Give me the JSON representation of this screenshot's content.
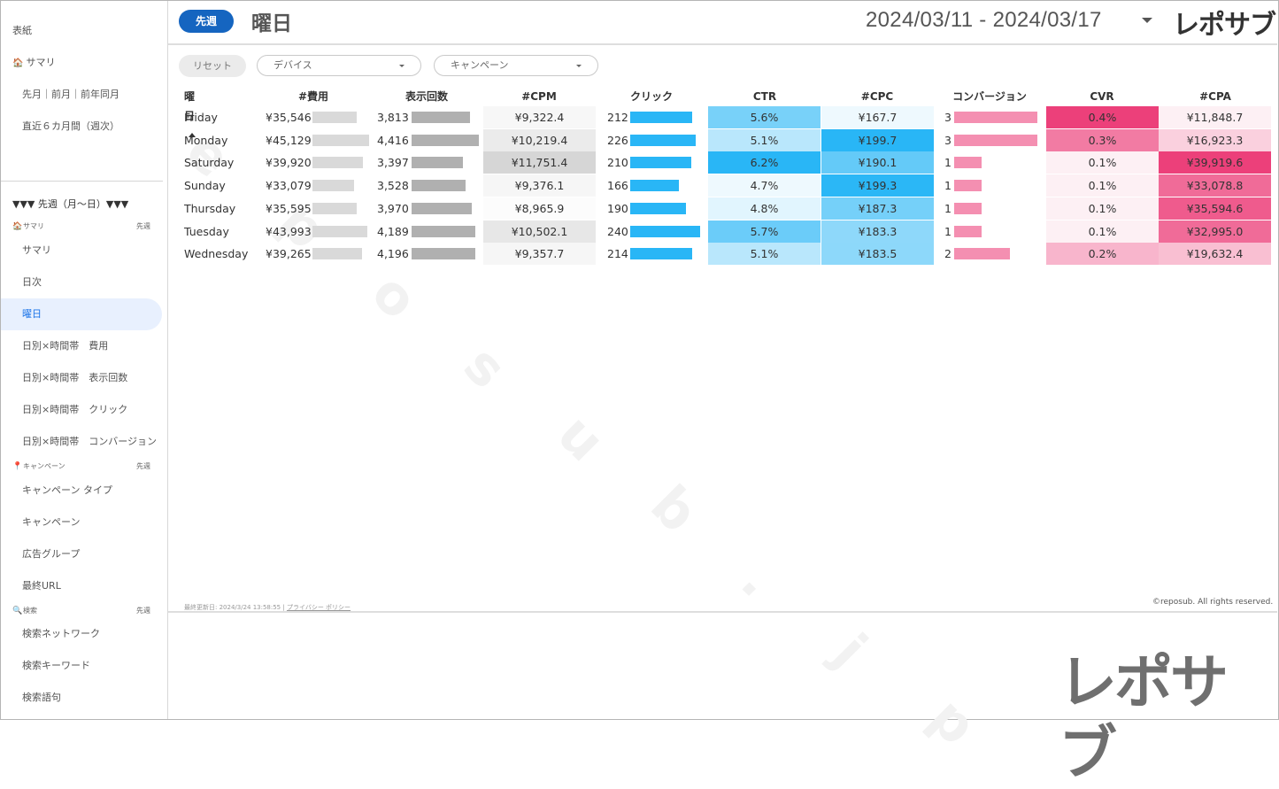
{
  "sidebar": {
    "top_items": [
      "表紙",
      "サマリ",
      "先月｜前月｜前年同月",
      "直近６カ月間（週次）"
    ],
    "summary_icon": "house-icon",
    "week_header": "▼▼▼ 先週（月～日）▼▼▼",
    "sections": [
      {
        "icon": "house-icon",
        "title": "サマリ",
        "right": "先週",
        "items": [
          "サマリ",
          "日次",
          "曜日",
          "日別×時間帯　費用",
          "日別×時間帯　表示回数",
          "日別×時間帯　クリック",
          "日別×時間帯　コンバージョン"
        ]
      },
      {
        "icon": "pin-icon",
        "title": "キャンペーン",
        "right": "先週",
        "items": [
          "キャンペーン タイプ",
          "キャンペーン",
          "広告グループ",
          "最終URL"
        ]
      },
      {
        "icon": "search-icon",
        "title": "検索",
        "right": "先週",
        "items": [
          "検索ネットワーク",
          "検索キーワード",
          "検索語句"
        ]
      }
    ],
    "active_item": "曜日"
  },
  "header": {
    "period_button": "先週",
    "title": "曜日",
    "date_range": "2024/03/11 - 2024/03/17",
    "logo": "レポサブ"
  },
  "filters": {
    "reset": "リセット",
    "device": "デバイス",
    "campaign": "キャンペーン"
  },
  "table": {
    "headers": [
      "曜日",
      "#費用",
      "表示回数",
      "#CPM",
      "クリック",
      "CTR",
      "#CPC",
      "コンバージョン",
      "CVR",
      "#CPA"
    ],
    "rows": [
      {
        "day": "Friday",
        "cost": "¥35,546",
        "cost_v": 35546,
        "imp": "3,813",
        "imp_v": 3813,
        "cpm": "¥9,322.4",
        "cpm_v": 9322.4,
        "clicks": "212",
        "clicks_v": 212,
        "ctr": "5.6%",
        "ctr_v": 5.6,
        "cpc": "¥167.7",
        "cpc_v": 167.7,
        "conv": "3",
        "conv_v": 3,
        "cvr": "0.4%",
        "cvr_v": 0.4,
        "cpa": "¥11,848.7",
        "cpa_v": 11848.7
      },
      {
        "day": "Monday",
        "cost": "¥45,129",
        "cost_v": 45129,
        "imp": "4,416",
        "imp_v": 4416,
        "cpm": "¥10,219.4",
        "cpm_v": 10219.4,
        "clicks": "226",
        "clicks_v": 226,
        "ctr": "5.1%",
        "ctr_v": 5.1,
        "cpc": "¥199.7",
        "cpc_v": 199.7,
        "conv": "3",
        "conv_v": 3,
        "cvr": "0.3%",
        "cvr_v": 0.3,
        "cpa": "¥16,923.3",
        "cpa_v": 16923.3
      },
      {
        "day": "Saturday",
        "cost": "¥39,920",
        "cost_v": 39920,
        "imp": "3,397",
        "imp_v": 3397,
        "cpm": "¥11,751.4",
        "cpm_v": 11751.4,
        "clicks": "210",
        "clicks_v": 210,
        "ctr": "6.2%",
        "ctr_v": 6.2,
        "cpc": "¥190.1",
        "cpc_v": 190.1,
        "conv": "1",
        "conv_v": 1,
        "cvr": "0.1%",
        "cvr_v": 0.1,
        "cpa": "¥39,919.6",
        "cpa_v": 39919.6
      },
      {
        "day": "Sunday",
        "cost": "¥33,079",
        "cost_v": 33079,
        "imp": "3,528",
        "imp_v": 3528,
        "cpm": "¥9,376.1",
        "cpm_v": 9376.1,
        "clicks": "166",
        "clicks_v": 166,
        "ctr": "4.7%",
        "ctr_v": 4.7,
        "cpc": "¥199.3",
        "cpc_v": 199.3,
        "conv": "1",
        "conv_v": 1,
        "cvr": "0.1%",
        "cvr_v": 0.1,
        "cpa": "¥33,078.8",
        "cpa_v": 33078.8
      },
      {
        "day": "Thursday",
        "cost": "¥35,595",
        "cost_v": 35595,
        "imp": "3,970",
        "imp_v": 3970,
        "cpm": "¥8,965.9",
        "cpm_v": 8965.9,
        "clicks": "190",
        "clicks_v": 190,
        "ctr": "4.8%",
        "ctr_v": 4.8,
        "cpc": "¥187.3",
        "cpc_v": 187.3,
        "conv": "1",
        "conv_v": 1,
        "cvr": "0.1%",
        "cvr_v": 0.1,
        "cpa": "¥35,594.6",
        "cpa_v": 35594.6
      },
      {
        "day": "Tuesday",
        "cost": "¥43,993",
        "cost_v": 43993,
        "imp": "4,189",
        "imp_v": 4189,
        "cpm": "¥10,502.1",
        "cpm_v": 10502.1,
        "clicks": "240",
        "clicks_v": 240,
        "ctr": "5.7%",
        "ctr_v": 5.7,
        "cpc": "¥183.3",
        "cpc_v": 183.3,
        "conv": "1",
        "conv_v": 1,
        "cvr": "0.1%",
        "cvr_v": 0.1,
        "cpa": "¥32,995.0",
        "cpa_v": 32995.0
      },
      {
        "day": "Wednesday",
        "cost": "¥39,265",
        "cost_v": 39265,
        "imp": "4,196",
        "imp_v": 4196,
        "cpm": "¥9,357.7",
        "cpm_v": 9357.7,
        "clicks": "214",
        "clicks_v": 214,
        "ctr": "5.1%",
        "ctr_v": 5.1,
        "cpc": "¥183.5",
        "cpc_v": 183.5,
        "conv": "2",
        "conv_v": 2,
        "cvr": "0.2%",
        "cvr_v": 0.2,
        "cpa": "¥19,632.4",
        "cpa_v": 19632.4
      }
    ],
    "colors": {
      "bar_gray_light": "#d9d9d9",
      "bar_gray_dark": "#b0b0b0",
      "bar_blue": "#29b6f6",
      "bar_pink": "#f48fb1",
      "heat_gray": "#d6d6d6",
      "heat_blue": "#29b6f6",
      "heat_pink": "#ec407a"
    }
  },
  "footer": {
    "updated": "最終更新日: 2024/3/24 13:58:55",
    "privacy": "プライバシー ポリシー",
    "copyright": "©reposub. All rights reserved."
  },
  "watermark": "reposub.jp",
  "big_logo": "レポサブ"
}
